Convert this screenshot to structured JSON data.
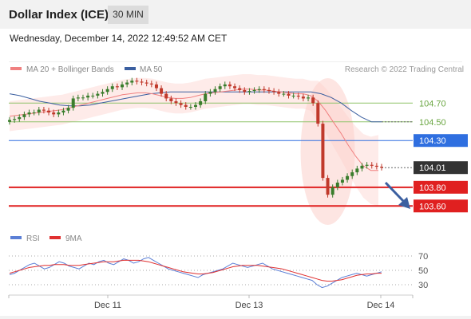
{
  "header": {
    "title": "Dollar Index (ICE)",
    "timeframe": "30 MIN",
    "datetime": "Wednesday, December 14, 2022 12:49:52 AM CET"
  },
  "legend": {
    "ma20_label": "MA 20 + Bollinger Bands",
    "ma50_label": "MA 50",
    "ma20_color": "#f08080",
    "ma50_color": "#3b5fa0",
    "rsi_label": "RSI",
    "rsi_color": "#5b7fd6",
    "ma9_label": "9MA",
    "ma9_color": "#e03030"
  },
  "copyright": "Research © 2022 Trading Central",
  "colors": {
    "up": "#3a7d2c",
    "down": "#c0392b",
    "resistance": "#8fc36a",
    "pivot": "#2f6fe0",
    "support": "#e02020",
    "last": "#333333"
  },
  "chart_data": [
    {
      "type": "candlestick",
      "title": "Dollar Index (ICE)",
      "x_ticks": [
        "Dec 11",
        "Dec 13",
        "Dec 14"
      ],
      "ylim": [
        103.5,
        104.95
      ],
      "levels": [
        {
          "value": 104.7,
          "label": "104.70",
          "kind": "resistance"
        },
        {
          "value": 104.5,
          "label": "104.50",
          "kind": "resistance"
        },
        {
          "value": 104.3,
          "label": "104.30",
          "kind": "pivot"
        },
        {
          "value": 104.01,
          "label": "104.01",
          "kind": "last"
        },
        {
          "value": 103.8,
          "label": "103.80",
          "kind": "support"
        },
        {
          "value": 103.6,
          "label": "103.60",
          "kind": "support"
        }
      ],
      "series": [
        {
          "name": "Price (close)",
          "values": [
            104.52,
            104.53,
            104.55,
            104.58,
            104.6,
            104.6,
            104.63,
            104.62,
            104.6,
            104.58,
            104.6,
            104.62,
            104.65,
            104.75,
            104.76,
            104.76,
            104.78,
            104.78,
            104.8,
            104.82,
            104.85,
            104.88,
            104.87,
            104.9,
            104.92,
            104.94,
            104.93,
            104.92,
            104.91,
            104.9,
            104.86,
            104.8,
            104.75,
            104.72,
            104.7,
            104.68,
            104.66,
            104.66,
            104.68,
            104.72,
            104.8,
            104.82,
            104.85,
            104.88,
            104.9,
            104.88,
            104.86,
            104.84,
            104.82,
            104.83,
            104.84,
            104.85,
            104.84,
            104.83,
            104.82,
            104.8,
            104.8,
            104.78,
            104.78,
            104.77,
            104.75,
            104.76,
            104.7,
            104.48,
            103.9,
            103.72,
            103.8,
            103.85,
            103.88,
            103.92,
            103.96,
            104.0,
            104.03,
            104.04,
            104.03,
            104.02,
            104.01
          ]
        },
        {
          "name": "MA 20",
          "values": [
            104.56,
            104.57,
            104.58,
            104.59,
            104.6,
            104.61,
            104.62,
            104.63,
            104.65,
            104.67,
            104.69,
            104.71,
            104.73,
            104.75,
            104.77,
            104.79,
            104.8,
            104.81,
            104.81,
            104.8,
            104.78,
            104.76,
            104.75,
            104.75,
            104.76,
            104.78,
            104.8,
            104.81,
            104.82,
            104.83,
            104.84,
            104.85,
            104.85,
            104.84,
            104.84,
            104.83,
            104.82,
            104.81,
            104.8,
            104.8,
            104.78,
            104.72,
            104.62,
            104.5,
            104.38,
            104.25,
            104.13,
            104.03,
            103.98,
            103.98
          ]
        },
        {
          "name": "MA 50",
          "values": [
            104.8,
            104.78,
            104.75,
            104.72,
            104.7,
            104.68,
            104.67,
            104.67,
            104.68,
            104.7,
            104.72,
            104.74,
            104.76,
            104.78,
            104.8,
            104.81,
            104.82,
            104.82,
            104.82,
            104.82,
            104.82,
            104.82,
            104.82,
            104.82,
            104.82,
            104.82,
            104.82,
            104.82,
            104.82,
            104.82,
            104.82,
            104.8,
            104.76,
            104.7,
            104.62,
            104.55,
            104.5,
            104.5
          ]
        }
      ]
    },
    {
      "type": "line",
      "title": "RSI",
      "ylim": [
        20,
        80
      ],
      "y_ticks": [
        "70",
        "50",
        "30"
      ],
      "series": [
        {
          "name": "RSI",
          "values": [
            44,
            46,
            50,
            54,
            58,
            60,
            56,
            52,
            54,
            58,
            62,
            60,
            56,
            54,
            52,
            56,
            60,
            58,
            62,
            64,
            60,
            58,
            62,
            66,
            64,
            60,
            62,
            66,
            68,
            64,
            60,
            56,
            52,
            50,
            48,
            46,
            44,
            42,
            40,
            44,
            46,
            48,
            50,
            52,
            56,
            60,
            58,
            56,
            54,
            56,
            58,
            60,
            56,
            52,
            50,
            48,
            46,
            44,
            42,
            40,
            38,
            36,
            30,
            26,
            28,
            32,
            36,
            40,
            42,
            44,
            46,
            44,
            42,
            44,
            46,
            48
          ]
        },
        {
          "name": "9MA",
          "values": [
            46,
            48,
            50,
            52,
            54,
            55,
            56,
            57,
            57,
            58,
            58,
            58,
            57,
            57,
            57,
            58,
            59,
            60,
            61,
            62,
            62,
            62,
            63,
            64,
            64,
            64,
            64,
            63,
            62,
            60,
            58,
            56,
            54,
            52,
            50,
            48,
            47,
            46,
            45,
            45,
            46,
            47,
            49,
            51,
            53,
            55,
            56,
            57,
            57,
            57,
            57,
            56,
            55,
            54,
            53,
            52,
            50,
            48,
            46,
            44,
            42,
            40,
            38,
            36,
            35,
            35,
            36,
            37,
            39,
            41,
            43,
            44,
            45,
            45,
            46,
            46
          ]
        }
      ]
    }
  ]
}
